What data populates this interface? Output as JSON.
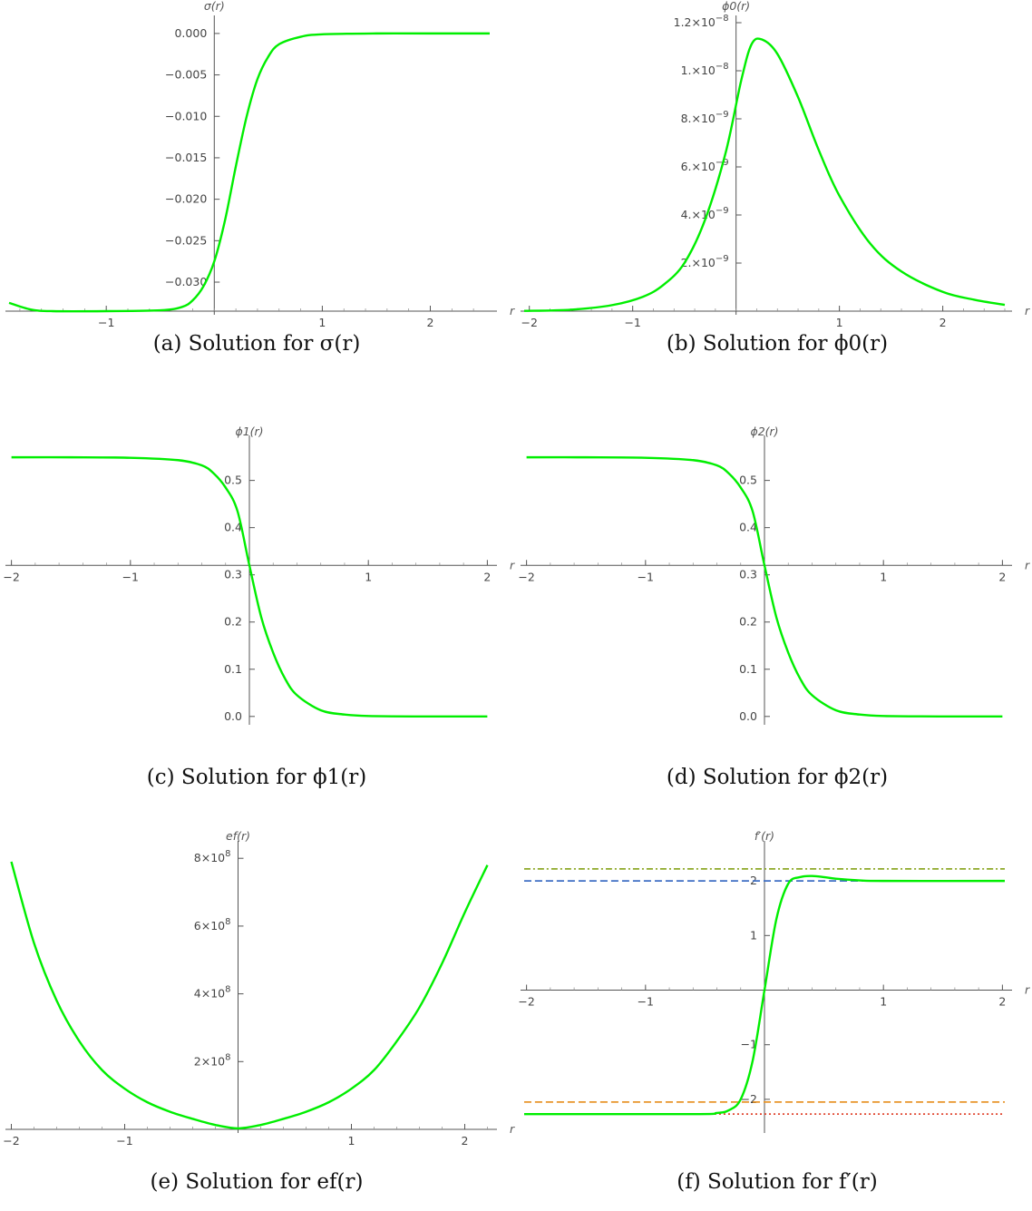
{
  "chart_data": [
    {
      "id": "a",
      "type": "line",
      "caption": "(a) Solution for σ(r)",
      "xlabel": "r",
      "ylabel": "σ(r)",
      "xlim": [
        -1.9,
        2.55
      ],
      "ylim": [
        -0.0335,
        0.0013
      ],
      "xticks": [
        -1,
        1,
        2
      ],
      "xticklabels": [
        "−1",
        "1",
        "2"
      ],
      "yticks": [
        0.0,
        -0.005,
        -0.01,
        -0.015,
        -0.02,
        -0.025,
        -0.03
      ],
      "yticklabels": [
        "0.000",
        "−0.005",
        "−0.010",
        "−0.015",
        "−0.020",
        "−0.025",
        "−0.030"
      ],
      "series": [
        {
          "x": [
            -1.9,
            -1.7,
            -1.5,
            -1.0,
            -0.5,
            -0.3,
            -0.2,
            -0.1,
            0.0,
            0.1,
            0.2,
            0.3,
            0.4,
            0.5,
            0.6,
            0.8,
            1.0,
            1.5,
            2.0,
            2.55
          ],
          "y": [
            -0.0325,
            -0.0333,
            -0.0335,
            -0.0335,
            -0.0334,
            -0.033,
            -0.0322,
            -0.0305,
            -0.0275,
            -0.0225,
            -0.016,
            -0.01,
            -0.0055,
            -0.0028,
            -0.0013,
            -0.0004,
            -0.0001,
            0.0,
            0.0,
            0.0
          ]
        }
      ],
      "grid": false
    },
    {
      "id": "b",
      "type": "line",
      "caption": "(b) Solution for ϕ0(r)",
      "xlabel": "r",
      "ylabel": "ϕ0(r)",
      "xlim": [
        -2.05,
        2.6
      ],
      "ylim": [
        0,
        1.2e-08
      ],
      "xticks": [
        -2,
        -1,
        1,
        2
      ],
      "xticklabels": [
        "−2",
        "−1",
        "1",
        "2"
      ],
      "yticks": [
        2e-09,
        4e-09,
        6e-09,
        8e-09,
        1e-08,
        1.2e-08
      ],
      "yticklabels": [
        "2.×10",
        "4.×10",
        "6.×10",
        "8.×10",
        "1.×10",
        "1.2×10"
      ],
      "ytickexp": [
        "−9",
        "−9",
        "−9",
        "−9",
        "−8",
        "−8"
      ],
      "series": [
        {
          "x": [
            -2.05,
            -1.6,
            -1.2,
            -0.9,
            -0.7,
            -0.5,
            -0.3,
            -0.1,
            0.05,
            0.15,
            0.25,
            0.4,
            0.6,
            0.8,
            1.0,
            1.3,
            1.6,
            2.0,
            2.3,
            2.6
          ],
          "y": [
            1e-11,
            6e-11,
            2.5e-10,
            6e-10,
            1.1e-09,
            2e-09,
            3.8e-09,
            6.6e-09,
            9.6e-09,
            1.11e-08,
            1.13e-08,
            1.07e-08,
            8.9e-09,
            6.7e-09,
            4.8e-09,
            2.8e-09,
            1.65e-09,
            8e-10,
            4.8e-10,
            2.6e-10
          ]
        }
      ],
      "grid": false
    },
    {
      "id": "c",
      "type": "line",
      "caption": "(c) Solution for ϕ1(r)",
      "xlabel": "r",
      "ylabel": "ϕ1(r)",
      "xlim": [
        -2.02,
        2.02
      ],
      "ylim": [
        -0.01,
        0.58
      ],
      "xcross": 0.32,
      "xticks": [
        -2,
        -1,
        1,
        2
      ],
      "xticklabels": [
        "−2",
        "−1",
        "1",
        "2"
      ],
      "yticks": [
        0.0,
        0.1,
        0.2,
        0.3,
        0.4,
        0.5
      ],
      "yticklabels": [
        "0.0",
        "0.1",
        "0.2",
        "0.3",
        "0.4",
        "0.5"
      ],
      "series": [
        {
          "x": [
            -2.0,
            -1.5,
            -1.0,
            -0.6,
            -0.4,
            -0.3,
            -0.2,
            -0.1,
            0.0,
            0.1,
            0.2,
            0.3,
            0.4,
            0.6,
            0.8,
            1.0,
            1.5,
            2.0
          ],
          "y": [
            0.549,
            0.549,
            0.548,
            0.543,
            0.532,
            0.515,
            0.485,
            0.435,
            0.32,
            0.21,
            0.135,
            0.08,
            0.045,
            0.013,
            0.004,
            0.001,
            0.0,
            0.0
          ]
        }
      ],
      "grid": false
    },
    {
      "id": "d",
      "type": "line",
      "caption": "(d) Solution for ϕ2(r)",
      "xlabel": "r",
      "ylabel": "ϕ2(r)",
      "xlim": [
        -2.02,
        2.02
      ],
      "ylim": [
        -0.01,
        0.58
      ],
      "xcross": 0.32,
      "xticks": [
        -2,
        -1,
        1,
        2
      ],
      "xticklabels": [
        "−2",
        "−1",
        "1",
        "2"
      ],
      "yticks": [
        0.0,
        0.1,
        0.2,
        0.3,
        0.4,
        0.5
      ],
      "yticklabels": [
        "0.0",
        "0.1",
        "0.2",
        "0.3",
        "0.4",
        "0.5"
      ],
      "series": [
        {
          "x": [
            -2.0,
            -1.5,
            -1.0,
            -0.6,
            -0.4,
            -0.3,
            -0.2,
            -0.1,
            0.0,
            0.1,
            0.2,
            0.3,
            0.4,
            0.6,
            0.8,
            1.0,
            1.5,
            2.0
          ],
          "y": [
            0.549,
            0.549,
            0.548,
            0.543,
            0.532,
            0.515,
            0.485,
            0.435,
            0.32,
            0.21,
            0.135,
            0.08,
            0.045,
            0.013,
            0.004,
            0.001,
            0.0,
            0.0
          ]
        }
      ],
      "grid": false
    },
    {
      "id": "e",
      "type": "line",
      "caption": "(e) Solution for ef(r)",
      "xlabel": "r",
      "ylabel": "ef(r)",
      "xlim": [
        -2.02,
        2.22
      ],
      "ylim": [
        0,
        830000000.0
      ],
      "xticks": [
        -2,
        -1,
        1,
        2
      ],
      "xticklabels": [
        "−2",
        "−1",
        "1",
        "2"
      ],
      "yticks": [
        200000000.0,
        400000000.0,
        600000000.0,
        800000000.0
      ],
      "yticklabels": [
        "2×10",
        "4×10",
        "6×10",
        "8×10"
      ],
      "ytickexp": [
        "8",
        "8",
        "8",
        "8"
      ],
      "series": [
        {
          "x": [
            -2.0,
            -1.8,
            -1.6,
            -1.4,
            -1.2,
            -1.0,
            -0.8,
            -0.6,
            -0.4,
            -0.2,
            0.0,
            0.2,
            0.4,
            0.6,
            0.8,
            1.0,
            1.2,
            1.4,
            1.6,
            1.8,
            2.0,
            2.2
          ],
          "y": [
            790000000.0,
            550000000.0,
            380000000.0,
            260000000.0,
            175000000.0,
            120000000.0,
            80000000.0,
            52000000.0,
            31000000.0,
            13000000.0,
            3000000.0,
            13000000.0,
            31000000.0,
            52000000.0,
            80000000.0,
            120000000.0,
            175000000.0,
            260000000.0,
            360000000.0,
            490000000.0,
            640000000.0,
            780000000.0
          ]
        }
      ],
      "grid": false
    },
    {
      "id": "f",
      "type": "line",
      "caption": "(f) Solution for f′(r)",
      "xlabel": "r",
      "ylabel": "f′(r)",
      "xlim": [
        -2.02,
        2.02
      ],
      "ylim": [
        -2.55,
        2.6
      ],
      "xticks": [
        -2,
        -1,
        1,
        2
      ],
      "xticklabels": [
        "−2",
        "−1",
        "1",
        "2"
      ],
      "yticks": [
        -2,
        -1,
        1,
        2
      ],
      "yticklabels": [
        "−2",
        "−1",
        "1",
        "2"
      ],
      "series": [
        {
          "x": [
            -2.02,
            -0.6,
            -0.4,
            -0.3,
            -0.2,
            -0.1,
            0.0,
            0.1,
            0.2,
            0.3,
            0.4,
            0.5,
            0.6,
            0.8,
            1.0,
            2.02
          ],
          "y": [
            -2.27,
            -2.27,
            -2.25,
            -2.2,
            -2.0,
            -1.3,
            0.0,
            1.3,
            1.95,
            2.07,
            2.09,
            2.07,
            2.04,
            2.01,
            2.0,
            2.0
          ]
        },
        {
          "x": [
            -2.02,
            2.02
          ],
          "y": [
            2.22,
            2.22
          ],
          "color": "#8ea828",
          "dash": "7,3,2,3"
        },
        {
          "x": [
            -2.02,
            2.02
          ],
          "y": [
            2.0,
            2.0
          ],
          "color": "#3e6fc4",
          "dash": "8,4"
        },
        {
          "x": [
            -2.02,
            2.02
          ],
          "y": [
            -2.05,
            -2.05
          ],
          "color": "#e8962b",
          "dash": "8,4"
        },
        {
          "x": [
            -2.02,
            2.02
          ],
          "y": [
            -2.27,
            -2.27
          ],
          "color": "#e0442d",
          "dash": "2,3"
        }
      ],
      "grid": false
    }
  ],
  "colors": {
    "curve": "#00ee00",
    "axis": "#555555"
  }
}
